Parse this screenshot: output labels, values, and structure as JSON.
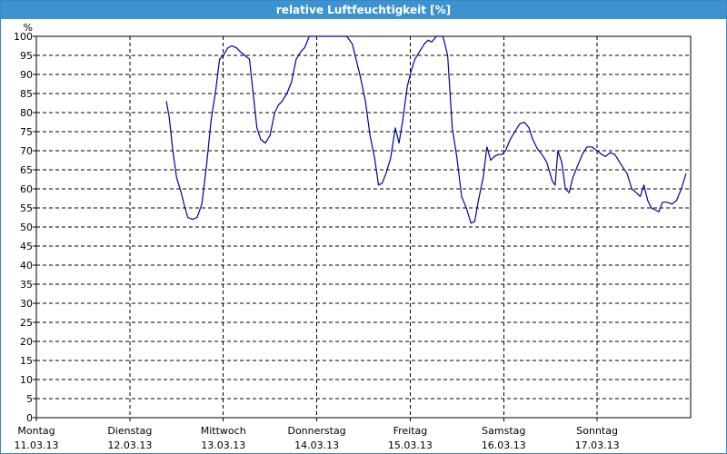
{
  "window": {
    "title": "relative Luftfeuchtigkeit [%]"
  },
  "chart_data": {
    "type": "line",
    "title": "relative Luftfeuchtigkeit [%]",
    "ylabel": "%",
    "xlabel": "",
    "ylim": [
      0,
      100
    ],
    "yticks": [
      0,
      5,
      10,
      15,
      20,
      25,
      30,
      35,
      40,
      45,
      50,
      55,
      60,
      65,
      70,
      75,
      80,
      85,
      90,
      95,
      100
    ],
    "xlim": [
      0,
      7.0
    ],
    "grid": true,
    "legend": "none",
    "line_color": "#0000a0",
    "x_categories": [
      {
        "day": "Montag",
        "date": "11.03.13"
      },
      {
        "day": "Dienstag",
        "date": "12.03.13"
      },
      {
        "day": "Mittwoch",
        "date": "13.03.13"
      },
      {
        "day": "Donnerstag",
        "date": "14.03.13"
      },
      {
        "day": "Freitag",
        "date": "15.03.13"
      },
      {
        "day": "Samstag",
        "date": "16.03.13"
      },
      {
        "day": "Sonntag",
        "date": "17.03.13"
      }
    ],
    "series": [
      {
        "values": [
          [
            1.39,
            83
          ],
          [
            1.42,
            79
          ],
          [
            1.46,
            70
          ],
          [
            1.5,
            63
          ],
          [
            1.55,
            59
          ],
          [
            1.58,
            56
          ],
          [
            1.62,
            52.5
          ],
          [
            1.67,
            52
          ],
          [
            1.72,
            52.5
          ],
          [
            1.77,
            56
          ],
          [
            1.82,
            66
          ],
          [
            1.87,
            78
          ],
          [
            1.92,
            86
          ],
          [
            1.96,
            94
          ],
          [
            2.0,
            95
          ],
          [
            2.05,
            97
          ],
          [
            2.09,
            97.5
          ],
          [
            2.14,
            97
          ],
          [
            2.18,
            96
          ],
          [
            2.23,
            95
          ],
          [
            2.28,
            94
          ],
          [
            2.32,
            85
          ],
          [
            2.36,
            76
          ],
          [
            2.4,
            73
          ],
          [
            2.45,
            72
          ],
          [
            2.5,
            74
          ],
          [
            2.55,
            80
          ],
          [
            2.59,
            82
          ],
          [
            2.63,
            83
          ],
          [
            2.68,
            85
          ],
          [
            2.73,
            88
          ],
          [
            2.78,
            94
          ],
          [
            2.83,
            96
          ],
          [
            2.87,
            97
          ],
          [
            2.92,
            100
          ],
          [
            3.0,
            100
          ],
          [
            3.1,
            100
          ],
          [
            3.2,
            100
          ],
          [
            3.32,
            100
          ],
          [
            3.38,
            98
          ],
          [
            3.42,
            94
          ],
          [
            3.47,
            89
          ],
          [
            3.52,
            83
          ],
          [
            3.57,
            74
          ],
          [
            3.62,
            68
          ],
          [
            3.66,
            61
          ],
          [
            3.7,
            61.5
          ],
          [
            3.74,
            64
          ],
          [
            3.79,
            68
          ],
          [
            3.84,
            76
          ],
          [
            3.88,
            72
          ],
          [
            3.92,
            78
          ],
          [
            3.97,
            87
          ],
          [
            4.01,
            91
          ],
          [
            4.05,
            94
          ],
          [
            4.1,
            96
          ],
          [
            4.15,
            98
          ],
          [
            4.19,
            99
          ],
          [
            4.23,
            98.5
          ],
          [
            4.28,
            100
          ],
          [
            4.35,
            100
          ],
          [
            4.4,
            95
          ],
          [
            4.45,
            76
          ],
          [
            4.5,
            68
          ],
          [
            4.55,
            58
          ],
          [
            4.6,
            55
          ],
          [
            4.65,
            51
          ],
          [
            4.69,
            51.5
          ],
          [
            4.73,
            57
          ],
          [
            4.78,
            63
          ],
          [
            4.82,
            71
          ],
          [
            4.86,
            67.5
          ],
          [
            4.9,
            68.5
          ],
          [
            4.94,
            69
          ],
          [
            4.98,
            69
          ],
          [
            5.02,
            70
          ],
          [
            5.07,
            73
          ],
          [
            5.12,
            75
          ],
          [
            5.17,
            77
          ],
          [
            5.22,
            77.5
          ],
          [
            5.27,
            76
          ],
          [
            5.31,
            73
          ],
          [
            5.36,
            70.5
          ],
          [
            5.41,
            69
          ],
          [
            5.46,
            67
          ],
          [
            5.52,
            62
          ],
          [
            5.55,
            61
          ],
          [
            5.58,
            70
          ],
          [
            5.62,
            67
          ],
          [
            5.66,
            60
          ],
          [
            5.7,
            59
          ],
          [
            5.74,
            63
          ],
          [
            5.79,
            66
          ],
          [
            5.84,
            69
          ],
          [
            5.89,
            71
          ],
          [
            5.94,
            71
          ],
          [
            6.0,
            70
          ],
          [
            6.05,
            69
          ],
          [
            6.09,
            68.5
          ],
          [
            6.14,
            69.5
          ],
          [
            6.19,
            69
          ],
          [
            6.24,
            67
          ],
          [
            6.28,
            65.5
          ],
          [
            6.32,
            64
          ],
          [
            6.37,
            60
          ],
          [
            6.42,
            59
          ],
          [
            6.46,
            58
          ],
          [
            6.5,
            61
          ],
          [
            6.54,
            57
          ],
          [
            6.58,
            55
          ],
          [
            6.62,
            54.5
          ],
          [
            6.66,
            54
          ],
          [
            6.7,
            56.5
          ],
          [
            6.75,
            56.5
          ],
          [
            6.8,
            56
          ],
          [
            6.85,
            57
          ],
          [
            6.9,
            60
          ],
          [
            6.95,
            64
          ]
        ]
      }
    ]
  }
}
